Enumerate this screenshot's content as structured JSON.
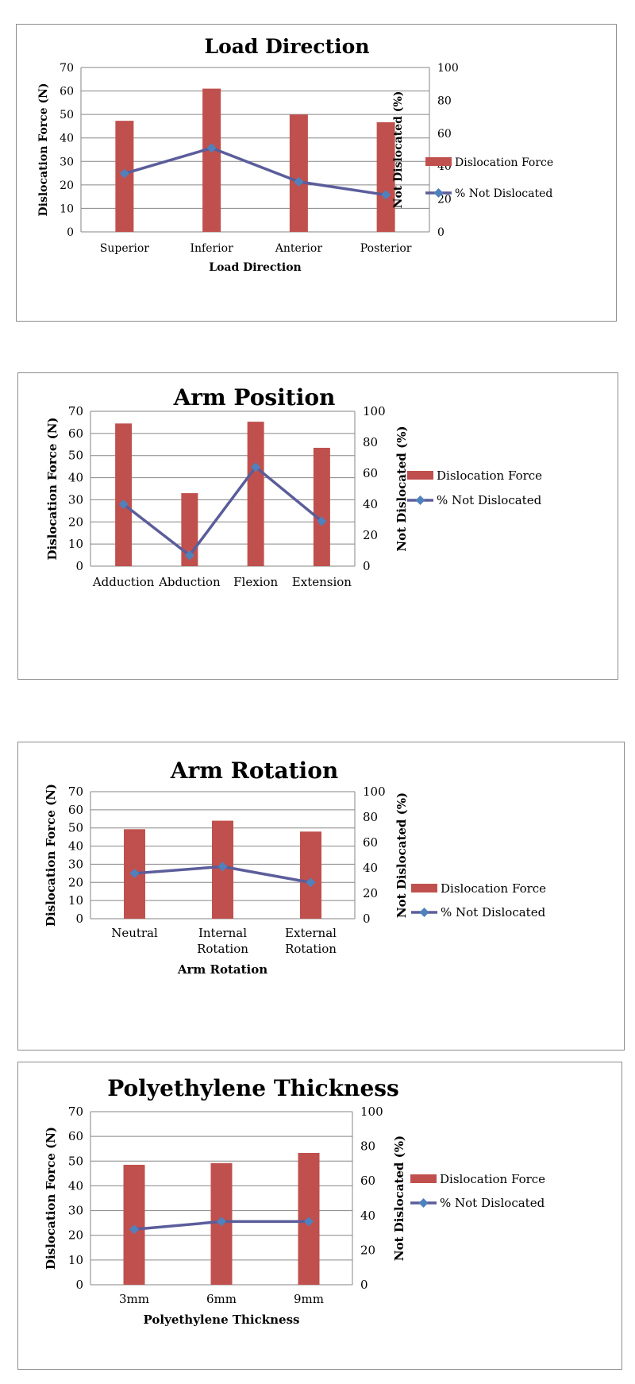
{
  "colors": {
    "bar": "#c0504d",
    "line": "#5b5d9b",
    "marker": "#4f81bd",
    "grid": "#868686"
  },
  "chart_data": [
    {
      "type": "bar+line",
      "title": "Load Direction",
      "xlabel": "Load Direction",
      "ylabel": "Dislocation Force (N)",
      "y2label": "Not Dislocated (%)",
      "categories": [
        [
          "Superior"
        ],
        [
          "Inferior"
        ],
        [
          "Anterior"
        ],
        [
          "Posterior"
        ]
      ],
      "ylim": [
        0,
        70
      ],
      "yticks": [
        "0",
        "10",
        "20",
        "30",
        "40",
        "50",
        "60",
        "70"
      ],
      "y2lim": [
        0,
        100
      ],
      "y2ticks": [
        "0",
        "20",
        "40",
        "60",
        "80",
        "100"
      ],
      "series": [
        {
          "name": "Dislocation Force",
          "type": "bar",
          "axis": "left",
          "values": [
            47.3,
            61,
            50,
            46.7
          ]
        },
        {
          "name": "% Not Dislocated",
          "type": "line",
          "axis": "right",
          "values": [
            35.5,
            51,
            30.5,
            22.5
          ]
        }
      ],
      "grid": true,
      "legend": "right"
    },
    {
      "type": "bar+line",
      "title": "Arm Position",
      "xlabel": "",
      "ylabel": "Dislocation Force (N)",
      "y2label": "Not Dislocated (%)",
      "categories": [
        [
          "Adduction"
        ],
        [
          "Abduction"
        ],
        [
          "Flexion"
        ],
        [
          "Extension"
        ]
      ],
      "ylim": [
        0,
        70
      ],
      "yticks": [
        "0",
        "10",
        "20",
        "30",
        "40",
        "50",
        "60",
        "70"
      ],
      "y2lim": [
        0,
        100
      ],
      "y2ticks": [
        "0",
        "20",
        "40",
        "60",
        "80",
        "100"
      ],
      "series": [
        {
          "name": "Dislocation Force",
          "type": "bar",
          "axis": "left",
          "values": [
            64.5,
            33,
            65.3,
            53.5
          ]
        },
        {
          "name": "% Not Dislocated",
          "type": "line",
          "axis": "right",
          "values": [
            40,
            7,
            64,
            29
          ]
        }
      ],
      "grid": true,
      "legend": "right"
    },
    {
      "type": "bar+line",
      "title": "Arm Rotation",
      "xlabel": "Arm Rotation",
      "ylabel": "Dislocation Force (N)",
      "y2label": "Not Dislocated (%)",
      "categories": [
        [
          "Neutral"
        ],
        [
          "Internal",
          "Rotation"
        ],
        [
          "External",
          "Rotation"
        ]
      ],
      "ylim": [
        0,
        70
      ],
      "yticks": [
        "0",
        "10",
        "20",
        "30",
        "40",
        "50",
        "60",
        "70"
      ],
      "y2lim": [
        0,
        100
      ],
      "y2ticks": [
        "0",
        "20",
        "40",
        "60",
        "80",
        "100"
      ],
      "series": [
        {
          "name": "Dislocation Force",
          "type": "bar",
          "axis": "left",
          "values": [
            49.3,
            54,
            48
          ]
        },
        {
          "name": "% Not Dislocated",
          "type": "line",
          "axis": "right",
          "values": [
            35.7,
            41,
            28.5
          ]
        }
      ],
      "grid": true,
      "legend": "right"
    },
    {
      "type": "bar+line",
      "title": "Polyethylene Thickness",
      "xlabel": "Polyethylene Thickness",
      "ylabel": "Dislocation Force (N)",
      "y2label": "Not Dislocated (%)",
      "categories": [
        [
          "3mm"
        ],
        [
          "6mm"
        ],
        [
          "9mm"
        ]
      ],
      "ylim": [
        0,
        70
      ],
      "yticks": [
        "0",
        "10",
        "20",
        "30",
        "40",
        "50",
        "60",
        "70"
      ],
      "y2lim": [
        0,
        100
      ],
      "y2ticks": [
        "0",
        "20",
        "40",
        "60",
        "80",
        "100"
      ],
      "series": [
        {
          "name": "Dislocation Force",
          "type": "bar",
          "axis": "left",
          "values": [
            48.5,
            49.2,
            53.3
          ]
        },
        {
          "name": "% Not Dislocated",
          "type": "line",
          "axis": "right",
          "values": [
            32,
            36.5,
            36.5
          ]
        }
      ],
      "grid": true,
      "legend": "right"
    }
  ]
}
